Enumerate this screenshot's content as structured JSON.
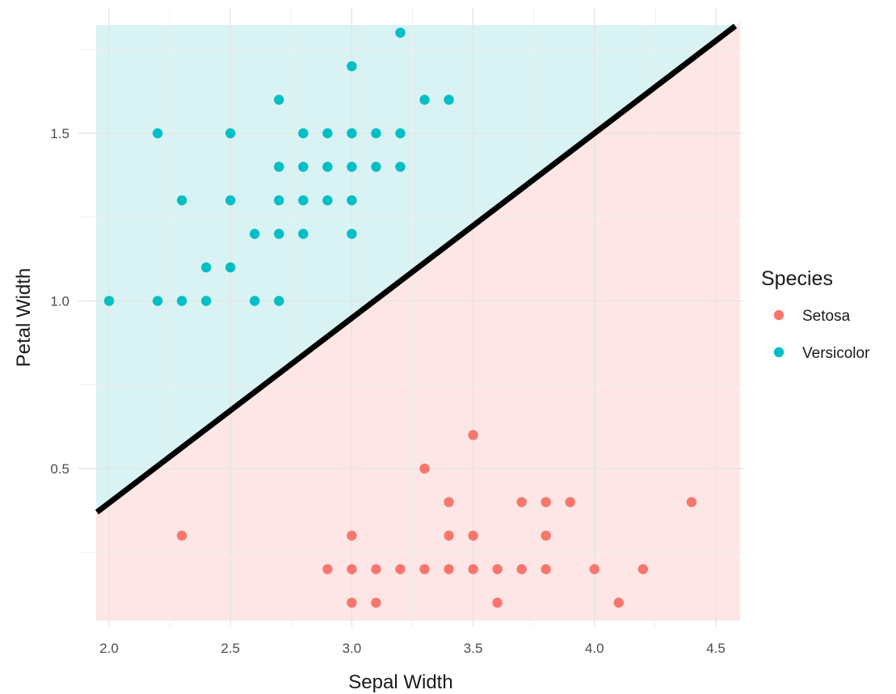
{
  "chart_data": {
    "type": "scatter",
    "xlabel": "Sepal Width",
    "ylabel": "Petal Width",
    "xlim": [
      1.95,
      4.58
    ],
    "ylim": [
      0.05,
      1.83
    ],
    "x_ticks": [
      "2.0",
      "2.5",
      "3.0",
      "3.5",
      "4.0",
      "4.5"
    ],
    "y_ticks": [
      "0.5",
      "1.0",
      "1.5"
    ],
    "grid": true,
    "legend": {
      "title": "Species",
      "placement": "right"
    },
    "decision_boundary": {
      "points": [
        [
          1.95,
          0.37
        ],
        [
          4.58,
          1.82
        ]
      ],
      "color": "#000000"
    },
    "regions": [
      {
        "series": "Versicolor",
        "side": "above",
        "fill": "#d9f3f4"
      },
      {
        "series": "Setosa",
        "side": "below",
        "fill": "#fde6e5"
      }
    ],
    "series": [
      {
        "name": "Setosa",
        "color": "#f8766d",
        "points": [
          [
            2.3,
            0.3
          ],
          [
            2.9,
            0.2
          ],
          [
            3.0,
            0.1
          ],
          [
            3.0,
            0.2
          ],
          [
            3.0,
            0.3
          ],
          [
            3.1,
            0.1
          ],
          [
            3.1,
            0.2
          ],
          [
            3.2,
            0.2
          ],
          [
            3.3,
            0.2
          ],
          [
            3.3,
            0.5
          ],
          [
            3.4,
            0.2
          ],
          [
            3.4,
            0.3
          ],
          [
            3.4,
            0.4
          ],
          [
            3.5,
            0.2
          ],
          [
            3.5,
            0.3
          ],
          [
            3.5,
            0.6
          ],
          [
            3.6,
            0.1
          ],
          [
            3.6,
            0.2
          ],
          [
            3.7,
            0.2
          ],
          [
            3.7,
            0.4
          ],
          [
            3.8,
            0.2
          ],
          [
            3.8,
            0.3
          ],
          [
            3.8,
            0.4
          ],
          [
            3.9,
            0.4
          ],
          [
            4.0,
            0.2
          ],
          [
            4.1,
            0.1
          ],
          [
            4.2,
            0.2
          ],
          [
            4.4,
            0.4
          ]
        ]
      },
      {
        "name": "Versicolor",
        "color": "#00bfc4",
        "points": [
          [
            2.0,
            1.0
          ],
          [
            2.2,
            1.0
          ],
          [
            2.2,
            1.5
          ],
          [
            2.3,
            1.0
          ],
          [
            2.3,
            1.3
          ],
          [
            2.4,
            1.0
          ],
          [
            2.4,
            1.1
          ],
          [
            2.5,
            1.1
          ],
          [
            2.5,
            1.3
          ],
          [
            2.5,
            1.5
          ],
          [
            2.6,
            1.0
          ],
          [
            2.6,
            1.2
          ],
          [
            2.7,
            1.0
          ],
          [
            2.7,
            1.2
          ],
          [
            2.7,
            1.3
          ],
          [
            2.7,
            1.4
          ],
          [
            2.7,
            1.6
          ],
          [
            2.8,
            1.2
          ],
          [
            2.8,
            1.3
          ],
          [
            2.8,
            1.4
          ],
          [
            2.8,
            1.5
          ],
          [
            2.9,
            1.3
          ],
          [
            2.9,
            1.4
          ],
          [
            2.9,
            1.5
          ],
          [
            3.0,
            1.2
          ],
          [
            3.0,
            1.3
          ],
          [
            3.0,
            1.4
          ],
          [
            3.0,
            1.5
          ],
          [
            3.0,
            1.7
          ],
          [
            3.1,
            1.4
          ],
          [
            3.1,
            1.5
          ],
          [
            3.2,
            1.4
          ],
          [
            3.2,
            1.5
          ],
          [
            3.2,
            1.8
          ],
          [
            3.3,
            1.6
          ],
          [
            3.4,
            1.6
          ]
        ]
      }
    ]
  }
}
